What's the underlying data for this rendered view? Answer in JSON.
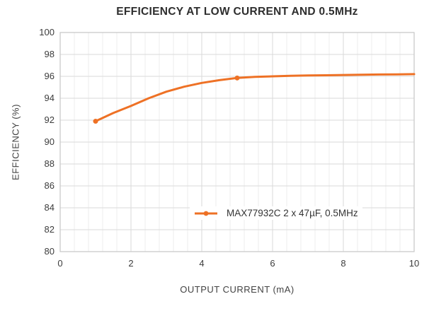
{
  "chart_data": {
    "type": "line",
    "title": "EFFICIENCY AT LOW CURRENT AND 0.5MHz",
    "xlabel": "OUTPUT CURRENT (mA)",
    "ylabel": "EFFICIENCY (%)",
    "xlim": [
      0,
      10
    ],
    "ylim": [
      80,
      100
    ],
    "xticks": [
      0,
      2,
      4,
      6,
      8,
      10
    ],
    "yticks": [
      80,
      82,
      84,
      86,
      88,
      90,
      92,
      94,
      96,
      98,
      100
    ],
    "x_minor_step": 0.4,
    "grid": true,
    "legend_position": "inside-bottom-center",
    "series": [
      {
        "name": "MAX77932C 2 x 47µF, 0.5MHz",
        "color": "#EE7125",
        "x": [
          1,
          1.5,
          2,
          2.5,
          3,
          3.5,
          4,
          4.5,
          5,
          5.5,
          6,
          6.5,
          7,
          7.5,
          8,
          8.5,
          9,
          9.5,
          10
        ],
        "y": [
          91.9,
          92.65,
          93.3,
          94.0,
          94.6,
          95.05,
          95.4,
          95.65,
          95.85,
          95.95,
          96.0,
          96.05,
          96.08,
          96.1,
          96.12,
          96.15,
          96.17,
          96.18,
          96.2
        ],
        "markers": [
          {
            "x": 1,
            "y": 91.9
          },
          {
            "x": 5,
            "y": 95.85
          }
        ]
      }
    ]
  },
  "colors": {
    "accent": "#EE7125",
    "grid_major": "#DADADA",
    "grid_minor": "#EDEDED",
    "plot_border": "#C6C6C6",
    "title_text": "#2E2E2E",
    "axis_text": "#3C3C3C",
    "background": "#FFFFFF"
  }
}
